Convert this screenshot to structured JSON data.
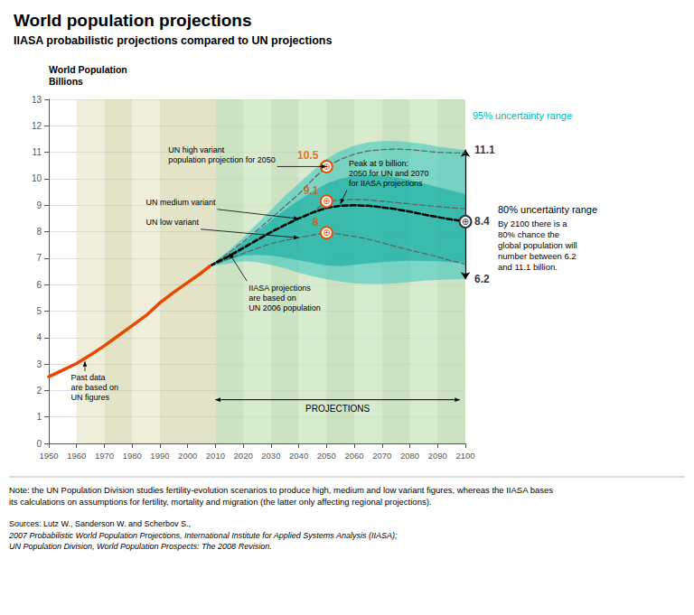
{
  "chart_data": {
    "type": "line",
    "title": "World population projections",
    "subtitle": "IIASA probabilistic projections compared to UN projections",
    "ylabel": "World Population",
    "ylabel_units": "Billions",
    "xlim": [
      1950,
      2100
    ],
    "xticks": [
      1950,
      1960,
      1970,
      1980,
      1990,
      2000,
      2010,
      2020,
      2030,
      2040,
      2050,
      2060,
      2070,
      2080,
      2090,
      2100
    ],
    "ylim": [
      0,
      13
    ],
    "yticks": [
      0,
      1,
      2,
      3,
      4,
      5,
      6,
      7,
      8,
      9,
      10,
      11,
      12,
      13
    ],
    "grid": "y",
    "series": [
      {
        "type": "band",
        "color": "#40c8c0",
        "x": [
          2008,
          2010,
          2015,
          2020,
          2025,
          2030,
          2035,
          2040,
          2045,
          2050,
          2055,
          2060,
          2065,
          2070,
          2075,
          2080,
          2085,
          2090,
          2095,
          2100
        ],
        "low": [
          6.7,
          6.72,
          6.8,
          6.88,
          6.85,
          6.75,
          6.62,
          6.45,
          6.32,
          6.2,
          6.12,
          6.05,
          6.02,
          6.02,
          6.05,
          6.1,
          6.15,
          6.18,
          6.2,
          6.22
        ],
        "high": [
          6.7,
          6.88,
          7.3,
          7.78,
          8.3,
          8.82,
          9.35,
          9.82,
          10.3,
          10.75,
          11.05,
          11.25,
          11.38,
          11.42,
          11.42,
          11.38,
          11.32,
          11.22,
          11.15,
          11.08
        ]
      },
      {
        "type": "band",
        "color": "#10a8a0",
        "x": [
          2008,
          2010,
          2015,
          2020,
          2025,
          2030,
          2035,
          2040,
          2045,
          2050,
          2055,
          2060,
          2065,
          2070,
          2075,
          2080,
          2085,
          2090,
          2095,
          2100
        ],
        "low": [
          6.7,
          6.77,
          6.95,
          7.1,
          7.12,
          7.1,
          7.02,
          6.92,
          6.82,
          6.72,
          6.7,
          6.75,
          6.8,
          6.85,
          6.88,
          6.9,
          6.9,
          6.88,
          6.85,
          6.82
        ],
        "high": [
          6.7,
          6.84,
          7.18,
          7.58,
          8.0,
          8.42,
          8.82,
          9.18,
          9.52,
          9.82,
          10.0,
          10.12,
          10.15,
          10.12,
          10.05,
          9.95,
          9.82,
          9.68,
          9.55,
          9.42
        ]
      },
      {
        "type": "line",
        "color": "#606060",
        "line_style": "dashed",
        "x": [
          2008,
          2010,
          2015,
          2020,
          2025,
          2030,
          2035,
          2040,
          2045,
          2050,
          2055,
          2060,
          2065,
          2070,
          2075,
          2080,
          2085,
          2090,
          2095,
          2100
        ],
        "values": [
          6.7,
          6.84,
          7.22,
          7.62,
          8.05,
          8.5,
          8.96,
          9.42,
          9.97,
          10.46,
          10.73,
          10.93,
          11.05,
          11.1,
          11.12,
          11.1,
          11.05,
          11.0,
          10.98,
          10.97
        ]
      },
      {
        "type": "line",
        "color": "#606060",
        "line_style": "dashed",
        "x": [
          2008,
          2010,
          2015,
          2020,
          2025,
          2030,
          2035,
          2040,
          2045,
          2050,
          2055,
          2060,
          2065,
          2070,
          2075,
          2080,
          2085,
          2090,
          2095,
          2100
        ],
        "values": [
          6.7,
          6.82,
          7.12,
          7.42,
          7.73,
          8.01,
          8.26,
          8.49,
          8.72,
          9.15,
          9.2,
          9.22,
          9.2,
          9.15,
          9.1,
          9.05,
          9.0,
          8.95,
          8.9,
          8.87
        ]
      },
      {
        "type": "line",
        "color": "#606060",
        "line_style": "dashed",
        "x": [
          2008,
          2010,
          2015,
          2020,
          2025,
          2030,
          2035,
          2040,
          2045,
          2050,
          2055,
          2060,
          2065,
          2070,
          2075,
          2080,
          2085,
          2090,
          2095,
          2100
        ],
        "values": [
          6.7,
          6.77,
          6.98,
          7.18,
          7.37,
          7.55,
          7.67,
          7.77,
          7.87,
          7.96,
          7.9,
          7.82,
          7.72,
          7.58,
          7.44,
          7.3,
          7.18,
          7.05,
          6.9,
          6.77
        ]
      },
      {
        "type": "line",
        "color": "#000000",
        "line_style": "dashed",
        "x": [
          2008,
          2010,
          2015,
          2020,
          2025,
          2030,
          2035,
          2040,
          2045,
          2050,
          2055,
          2060,
          2065,
          2070,
          2075,
          2080,
          2085,
          2090,
          2095,
          2100
        ],
        "values": [
          6.7,
          6.82,
          7.08,
          7.38,
          7.68,
          7.98,
          8.25,
          8.5,
          8.72,
          8.9,
          8.98,
          9.0,
          8.98,
          8.92,
          8.85,
          8.76,
          8.65,
          8.55,
          8.46,
          8.38
        ]
      },
      {
        "type": "line",
        "color": "#e84800",
        "line_style": "solid",
        "x": [
          1950,
          1955,
          1960,
          1965,
          1970,
          1975,
          1980,
          1985,
          1990,
          1995,
          2000,
          2005,
          2008
        ],
        "values": [
          2.52,
          2.77,
          3.02,
          3.34,
          3.69,
          4.07,
          4.45,
          4.83,
          5.31,
          5.71,
          6.08,
          6.45,
          6.7
        ]
      }
    ],
    "x_bands": [
      {
        "start": 1970,
        "end": 1980,
        "color": "#c8c890"
      },
      {
        "start": 1990,
        "end": 2000,
        "color": "#c8c890"
      },
      {
        "start": 2000,
        "end": 2010,
        "color": "#c8c890"
      },
      {
        "start": 1960,
        "end": 1970,
        "color": "#ddddb8"
      },
      {
        "start": 1980,
        "end": 1990,
        "color": "#ddddb8"
      },
      {
        "start": 2010,
        "end": 2100,
        "color": "#c8ddc0"
      },
      {
        "start": 2010,
        "end": 2020,
        "color": "#b8d4a8"
      },
      {
        "start": 2030,
        "end": 2040,
        "color": "#b8d4a8"
      },
      {
        "start": 2050,
        "end": 2060,
        "color": "#b8d4a8"
      },
      {
        "start": 2070,
        "end": 2080,
        "color": "#b8d4a8"
      },
      {
        "start": 2090,
        "end": 2100,
        "color": "#b8d4a8"
      },
      {
        "start": 2020,
        "end": 2030,
        "color": "#d0e8c0"
      },
      {
        "start": 2040,
        "end": 2050,
        "color": "#d0e8c0"
      },
      {
        "start": 2060,
        "end": 2070,
        "color": "#d0e8c0"
      },
      {
        "start": 2080,
        "end": 2090,
        "color": "#d0e8c0"
      }
    ],
    "annotations": [
      {
        "text": "Past data\nare based on\nUN figures",
        "xy": [
          1963,
          3.1
        ],
        "xytext": [
          1958,
          2.1
        ]
      },
      {
        "text": "UN high variant\npopulation projection for 2050",
        "xy": [
          2050,
          10.46
        ],
        "xytext": [
          1993,
          10.9
        ]
      },
      {
        "text": "UN medium variant",
        "xy": [
          2040,
          8.49
        ],
        "xytext": [
          1985,
          9.1
        ]
      },
      {
        "text": "UN low variant",
        "xy": [
          2040,
          7.77
        ],
        "xytext": [
          1985,
          8.35
        ]
      },
      {
        "text": "IIASA projections\nare based on\nUN 2006 population",
        "xy": [
          2015,
          7.18
        ],
        "xytext": [
          2022,
          5.5
        ]
      },
      {
        "text": "Peak at 9 billion:\n2050 for UN and 2070\nfor IIASA projections",
        "xy": [
          2055,
          9.05
        ],
        "xytext": [
          2058,
          10.2
        ]
      }
    ],
    "marker_glyph": "⊕",
    "markers": [
      {
        "x": 2050,
        "y": 10.46,
        "label": "10.5",
        "color": "#e85000"
      },
      {
        "x": 2050,
        "y": 9.15,
        "label": "9.1",
        "color": "#e85000"
      },
      {
        "x": 2050,
        "y": 7.96,
        "label": "8",
        "color": "#e85000"
      },
      {
        "x": 2100,
        "y": 8.38,
        "color": "#333333"
      }
    ],
    "span_arrows": [
      {
        "text": "PROJECTIONS",
        "from": 2010,
        "to": 2098,
        "y": 1.65
      }
    ],
    "end_labels": [
      {
        "value": 11.1,
        "label": "11.1"
      },
      {
        "value": 8.38,
        "label": "8.4"
      },
      {
        "value": 6.2,
        "label": "6.2"
      }
    ],
    "side_note": {
      "text": "95% uncertainty range",
      "y": 12.4,
      "color": "#00b5b5"
    },
    "bracket": {
      "from": 11.1,
      "to": 6.2,
      "text": "80% uncertainty range",
      "note": "By 2100 there is a\n80% chance the\nglobal population will\nnumber between 6.2\nand 11.1 billion."
    },
    "note": "Note: the UN Population Division studies fertility-evolution scenarios to produce high, medium and low variant figures, whereas the IIASA bases\nits calculations on assumptions for fertility, mortality and migration (the latter only affecting regional projections).",
    "sources": [
      "Sources: Lutz W., Sanderson W. and Scherbov S., ",
      "2007 Probabilistic World Population Projections, International Institute for Applied Systems Analysis (IIASA);\nUN Population Division, World Population Prospects: The 2008 Revision."
    ]
  }
}
